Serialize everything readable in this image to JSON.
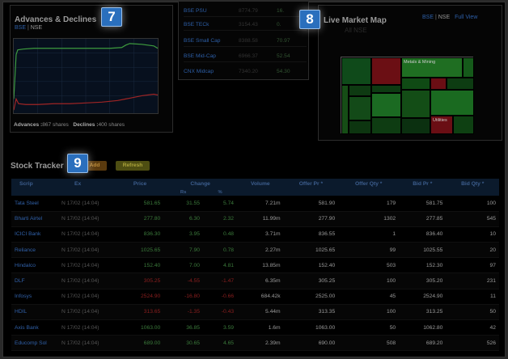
{
  "advances": {
    "title": "Advances & Declines",
    "exchanges": [
      "BSE",
      "NSE"
    ],
    "sep": "|",
    "advances_label": "Advances :",
    "advances_value": "867 shares",
    "declines_label": "Declines :",
    "declines_value": "400 shares"
  },
  "indices": [
    {
      "name": "BSE PSU",
      "value": "8774.79",
      "change": "16."
    },
    {
      "name": "BSE TECk",
      "value": "3154.43",
      "change": "0."
    },
    {
      "name": "BSE Small Cap",
      "value": "8388.58",
      "change": "70.97"
    },
    {
      "name": "BSE Mid-Cap",
      "value": "6966.37",
      "change": "52.54"
    },
    {
      "name": "CNX Midcap",
      "value": "7340.20",
      "change": "54.30"
    }
  ],
  "market_map": {
    "title": "Live Market Map",
    "subtitle": "All NSE",
    "links": {
      "bse": "BSE",
      "sep": "|",
      "nse": "NSE",
      "full_view": "Full View"
    },
    "labels": {
      "metals": "Metals & Mining",
      "utilities": "Utilities"
    }
  },
  "badges": {
    "b7": "7",
    "b8": "8",
    "b9": "9"
  },
  "tracker": {
    "title": "Stock Tracker",
    "add_label": "Add",
    "refresh_label": "Refresh"
  },
  "table": {
    "headers": {
      "scrip": "Scrip",
      "ex": "Ex",
      "price": "Price",
      "change": "Change",
      "rs": "Rs",
      "pct": "%",
      "volume": "Volume",
      "offer_pr": "Offer Pr *",
      "offer_qty": "Offer Qty *",
      "bid_pr": "Bid Pr *",
      "bid_qty": "Bid Qty *"
    },
    "rows": [
      {
        "scrip": "Tata Steel",
        "ex": "N 17/02 (14:04)",
        "price": "581.65",
        "rs": "31.55",
        "pct": "5.74",
        "volume": "7.21m",
        "offer_pr": "581.90",
        "offer_qty": "179",
        "bid_pr": "581.75",
        "bid_qty": "100",
        "dir": "up"
      },
      {
        "scrip": "Bharti Airtel",
        "ex": "N 17/02 (14:04)",
        "price": "277.80",
        "rs": "6.30",
        "pct": "2.32",
        "volume": "11.99m",
        "offer_pr": "277.90",
        "offer_qty": "1302",
        "bid_pr": "277.85",
        "bid_qty": "545",
        "dir": "up"
      },
      {
        "scrip": "ICICI Bank",
        "ex": "N 17/02 (14:04)",
        "price": "836.30",
        "rs": "3.95",
        "pct": "0.48",
        "volume": "3.71m",
        "offer_pr": "836.55",
        "offer_qty": "1",
        "bid_pr": "836.40",
        "bid_qty": "10",
        "dir": "up"
      },
      {
        "scrip": "Reliance",
        "ex": "N 17/02 (14:04)",
        "price": "1025.65",
        "rs": "7.90",
        "pct": "0.78",
        "volume": "2.27m",
        "offer_pr": "1025.65",
        "offer_qty": "99",
        "bid_pr": "1025.55",
        "bid_qty": "20",
        "dir": "up"
      },
      {
        "scrip": "Hindalco",
        "ex": "N 17/02 (14:04)",
        "price": "152.40",
        "rs": "7.00",
        "pct": "4.81",
        "volume": "13.85m",
        "offer_pr": "152.40",
        "offer_qty": "503",
        "bid_pr": "152.30",
        "bid_qty": "97",
        "dir": "up"
      },
      {
        "scrip": "DLF",
        "ex": "N 17/02 (14:04)",
        "price": "305.25",
        "rs": "-4.55",
        "pct": "-1.47",
        "volume": "6.35m",
        "offer_pr": "305.25",
        "offer_qty": "100",
        "bid_pr": "305.20",
        "bid_qty": "231",
        "dir": "down"
      },
      {
        "scrip": "Infosys",
        "ex": "N 17/02 (14:04)",
        "price": "2524.90",
        "rs": "-16.80",
        "pct": "-0.66",
        "volume": "684.42k",
        "offer_pr": "2525.00",
        "offer_qty": "45",
        "bid_pr": "2524.90",
        "bid_qty": "11",
        "dir": "down"
      },
      {
        "scrip": "HDIL",
        "ex": "N 17/02 (14:04)",
        "price": "313.65",
        "rs": "-1.35",
        "pct": "-0.43",
        "volume": "5.44m",
        "offer_pr": "313.35",
        "offer_qty": "100",
        "bid_pr": "313.25",
        "bid_qty": "50",
        "dir": "down"
      },
      {
        "scrip": "Axis Bank",
        "ex": "N 17/02 (14:04)",
        "price": "1063.00",
        "rs": "36.85",
        "pct": "3.59",
        "volume": "1.6m",
        "offer_pr": "1063.00",
        "offer_qty": "50",
        "bid_pr": "1062.80",
        "bid_qty": "42",
        "dir": "up"
      },
      {
        "scrip": "Educomp Sol",
        "ex": "N 17/02 (14:04)",
        "price": "689.00",
        "rs": "30.65",
        "pct": "4.65",
        "volume": "2.39m",
        "offer_pr": "690.00",
        "offer_qty": "508",
        "bid_pr": "689.20",
        "bid_qty": "526",
        "dir": "up"
      }
    ]
  },
  "colors": {
    "up": "#3b7a3b",
    "down": "#8c1f1f",
    "link": "#3060a8",
    "badge": "#2a6fbd"
  }
}
